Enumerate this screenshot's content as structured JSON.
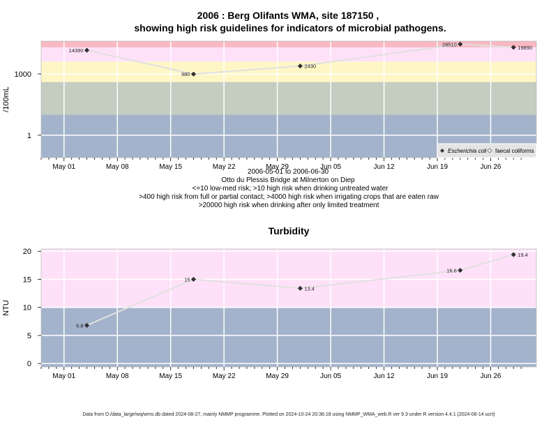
{
  "title_line1": "2006 : Berg Olifants WMA, site 187150 ,",
  "title_line2": "showing high risk guidelines for indicators of microbial pathogens.",
  "footer": "Data from D:/data_large/wq/wms.db dated 2024-08-27, mainly NMMP programme. Plotted on 2024-10-24 20:36:18 using NMMP_WMA_web.R ver 9.3 under R version 4.4.1 (2024-06-14 ucrt)",
  "x_ticks": [
    "May 01",
    "May 08",
    "May 15",
    "May 22",
    "May 29",
    "Jun 05",
    "Jun 12",
    "Jun 19",
    "Jun 26"
  ],
  "notes": [
    "2006-05-01 to 2006-06-30",
    "Otto du Plessis Bridge at Milnerton on Diep",
    "<=10 low-med risk; >10 high risk when drinking untreated water",
    ">400 high risk from full or partial contact; >4000 high risk when irrigating crops that are eaten raw",
    ">20000 high risk when drinking after only limited treatment"
  ],
  "colors": {
    "band_blue": "#a3b3cb",
    "band_grey": "#c4cdc0",
    "band_yellow": "#fef7c5",
    "band_pink": "#fee1f9",
    "band_red": "#f9b8c3",
    "grid": "#ffffff",
    "series_line": "#e0e0e0",
    "point": "#333333"
  },
  "chart_data": [
    {
      "type": "line",
      "title": "",
      "ylabel": "/100mL",
      "y_scale": "log10",
      "ylim": [
        0.08,
        40000
      ],
      "xlim": [
        "2006-04-28",
        "2006-07-02"
      ],
      "y_ticks": [
        1,
        1000
      ],
      "y_tick_labels": [
        "1",
        "1000"
      ],
      "bands": [
        {
          "from": 0.08,
          "to": 10,
          "color": "#a3b3cb"
        },
        {
          "from": 10,
          "to": 400,
          "color": "#c4cdc0"
        },
        {
          "from": 400,
          "to": 4000,
          "color": "#fef7c5"
        },
        {
          "from": 4000,
          "to": 20000,
          "color": "#fee1f9"
        },
        {
          "from": 20000,
          "to": 40000,
          "color": "#f9b8c3"
        }
      ],
      "legend": [
        "Escherichia coli",
        "faecal coliforms"
      ],
      "legend_position": "bottom-right",
      "series": [
        {
          "name": "Escherichia coli",
          "x": [
            "2006-05-04",
            "2006-05-18",
            "2006-06-01",
            "2006-06-22",
            "2006-06-29"
          ],
          "values": [
            14390,
            980,
            2430,
            28510,
            19890
          ],
          "labels": [
            "14390",
            "980",
            "2430",
            "28510",
            "19890"
          ]
        }
      ]
    },
    {
      "type": "line",
      "title": "Turbidity",
      "ylabel": "NTU",
      "y_scale": "linear",
      "ylim": [
        -0.6,
        20.4
      ],
      "xlim": [
        "2006-04-28",
        "2006-07-02"
      ],
      "y_ticks": [
        0,
        5,
        10,
        15,
        20
      ],
      "y_tick_labels": [
        "0",
        "5",
        "10",
        "15",
        "20"
      ],
      "bands": [
        {
          "from": -0.6,
          "to": 10,
          "color": "#a3b3cb"
        },
        {
          "from": 10,
          "to": 20.4,
          "color": "#fee1f9"
        }
      ],
      "series": [
        {
          "name": "",
          "x": [
            "2006-05-04",
            "2006-05-18",
            "2006-06-01",
            "2006-06-22",
            "2006-06-29"
          ],
          "values": [
            6.8,
            15,
            13.4,
            16.6,
            19.4
          ],
          "labels": [
            "6.8",
            "15",
            "13.4",
            "16.6",
            "19.4"
          ]
        }
      ]
    }
  ]
}
